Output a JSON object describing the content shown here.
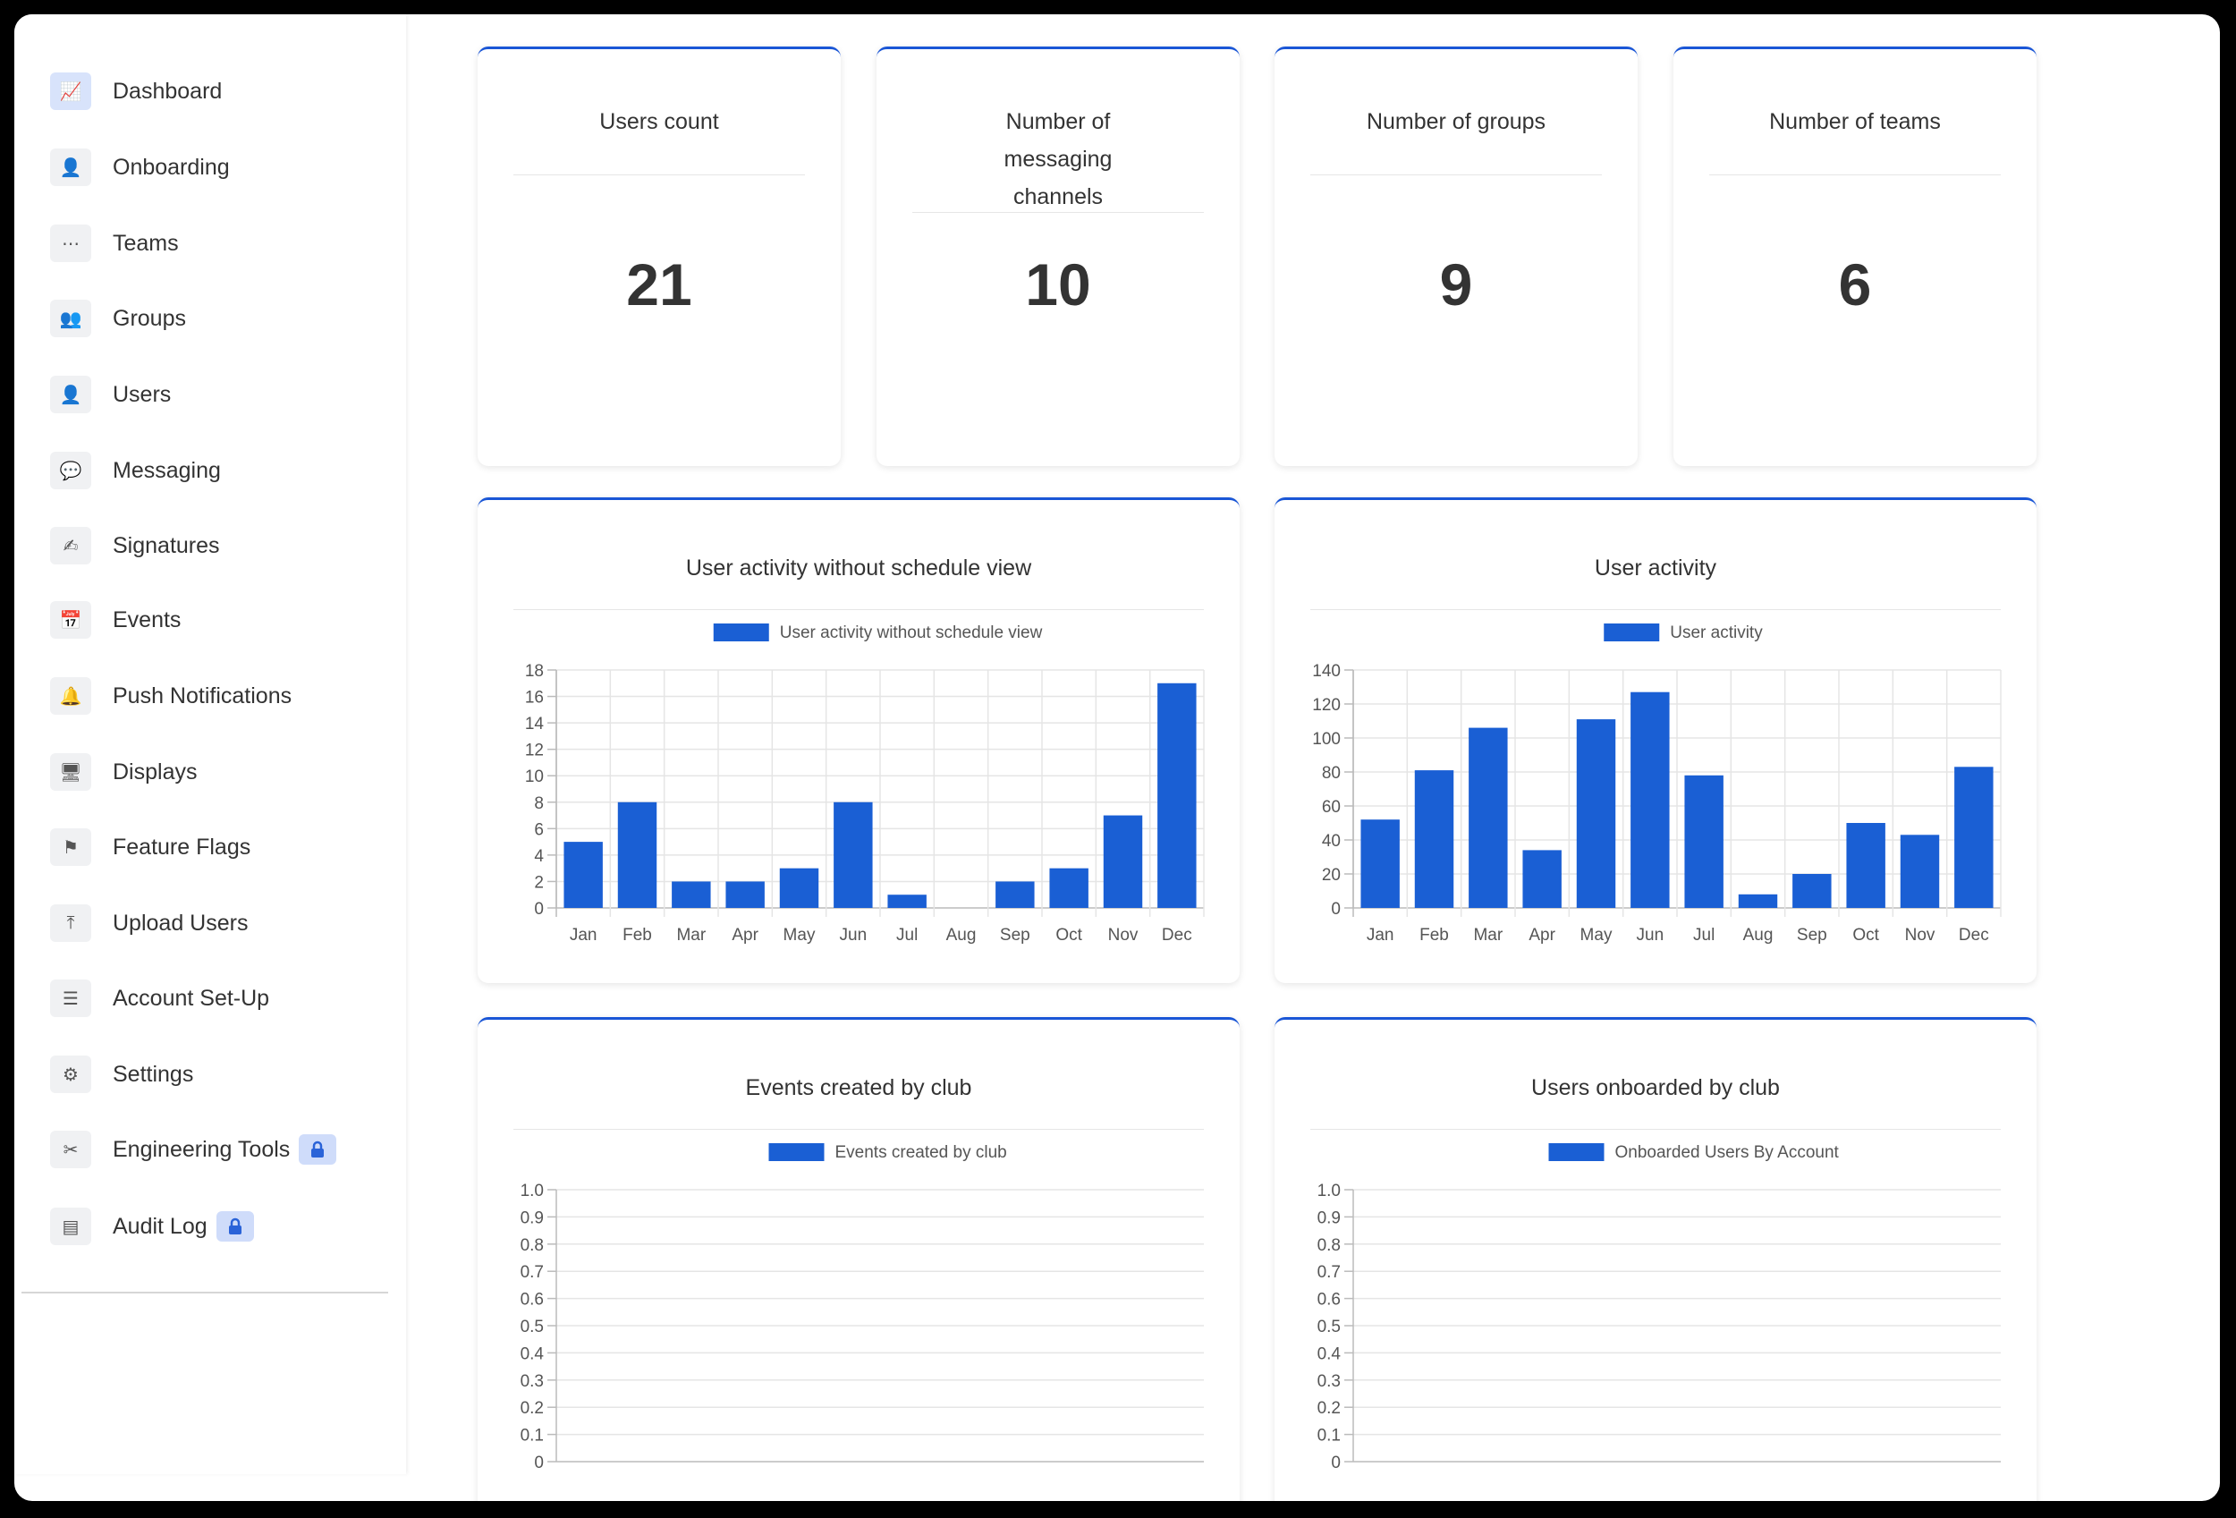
{
  "sidebar": {
    "items": [
      {
        "label": "Dashboard",
        "icon": "chart-line-icon",
        "glyph": "📈",
        "active": true
      },
      {
        "label": "Onboarding",
        "icon": "user-plus-icon",
        "glyph": "👤",
        "active": false
      },
      {
        "label": "Teams",
        "icon": "dots-icon",
        "glyph": "⋯",
        "active": false
      },
      {
        "label": "Groups",
        "icon": "users-icon",
        "glyph": "👥",
        "active": false
      },
      {
        "label": "Users",
        "icon": "user-icon",
        "glyph": "👤",
        "active": false
      },
      {
        "label": "Messaging",
        "icon": "chat-bubble-icon",
        "glyph": "💬",
        "active": false
      },
      {
        "label": "Signatures",
        "icon": "signature-icon",
        "glyph": "✍",
        "active": false
      },
      {
        "label": "Events",
        "icon": "calendar-icon",
        "glyph": "📅",
        "active": false
      },
      {
        "label": "Push Notifications",
        "icon": "bell-icon",
        "glyph": "🔔",
        "active": false
      },
      {
        "label": "Displays",
        "icon": "monitor-icon",
        "glyph": "🖥",
        "active": false
      },
      {
        "label": "Feature Flags",
        "icon": "flag-icon",
        "glyph": "⚑",
        "active": false
      },
      {
        "label": "Upload Users",
        "icon": "upload-icon",
        "glyph": "⤒",
        "active": false
      },
      {
        "label": "Account Set-Up",
        "icon": "sliders-icon",
        "glyph": "☰",
        "active": false
      },
      {
        "label": "Settings",
        "icon": "gear-icon",
        "glyph": "⚙",
        "active": false
      },
      {
        "label": "Engineering Tools",
        "icon": "tools-icon",
        "glyph": "✂",
        "active": false,
        "locked": true
      },
      {
        "label": "Audit Log",
        "icon": "archive-icon",
        "glyph": "▤",
        "active": false,
        "locked": true
      }
    ]
  },
  "stats": [
    {
      "title": "Users count",
      "value": "21"
    },
    {
      "title": "Number of messaging channels",
      "value": "10"
    },
    {
      "title": "Number of groups",
      "value": "9"
    },
    {
      "title": "Number of teams",
      "value": "6"
    }
  ],
  "colors": {
    "accent": "#1a56d6",
    "bar": "#1a5fd4",
    "grid": "#e5e5e5"
  },
  "chart_data": [
    {
      "type": "bar",
      "title": "User activity without schedule view",
      "categories": [
        "Jan",
        "Feb",
        "Mar",
        "Apr",
        "May",
        "Jun",
        "Jul",
        "Aug",
        "Sep",
        "Oct",
        "Nov",
        "Dec"
      ],
      "series": [
        {
          "name": "User activity without schedule view",
          "values": [
            5,
            8,
            2,
            2,
            3,
            8,
            1,
            0,
            2,
            3,
            7,
            17
          ]
        }
      ],
      "ylim": [
        0,
        18
      ],
      "yticks": [
        "0",
        "2",
        "4",
        "6",
        "8",
        "10",
        "12",
        "14",
        "16",
        "18"
      ],
      "grid": true,
      "legend": "top-center"
    },
    {
      "type": "bar",
      "title": "User activity",
      "categories": [
        "Jan",
        "Feb",
        "Mar",
        "Apr",
        "May",
        "Jun",
        "Jul",
        "Aug",
        "Sep",
        "Oct",
        "Nov",
        "Dec"
      ],
      "series": [
        {
          "name": "User activity",
          "values": [
            52,
            81,
            106,
            34,
            111,
            127,
            78,
            8,
            20,
            50,
            43,
            83
          ]
        }
      ],
      "ylim": [
        0,
        140
      ],
      "yticks": [
        "0",
        "20",
        "40",
        "60",
        "80",
        "100",
        "120",
        "140"
      ],
      "grid": true,
      "legend": "top-center"
    },
    {
      "type": "bar",
      "title": "Events created by club",
      "categories": [],
      "series": [
        {
          "name": "Events created by club",
          "values": []
        }
      ],
      "ylim": [
        0,
        1.0
      ],
      "yticks": [
        "0",
        "0.1",
        "0.2",
        "0.3",
        "0.4",
        "0.5",
        "0.6",
        "0.7",
        "0.8",
        "0.9",
        "1.0"
      ],
      "grid": true,
      "legend": "top-center"
    },
    {
      "type": "bar",
      "title": "Users onboarded by club",
      "categories": [],
      "series": [
        {
          "name": "Onboarded Users By Account",
          "values": []
        }
      ],
      "ylim": [
        0,
        1.0
      ],
      "yticks": [
        "0",
        "0.1",
        "0.2",
        "0.3",
        "0.4",
        "0.5",
        "0.6",
        "0.7",
        "0.8",
        "0.9",
        "1.0"
      ],
      "grid": true,
      "legend": "top-center"
    }
  ]
}
